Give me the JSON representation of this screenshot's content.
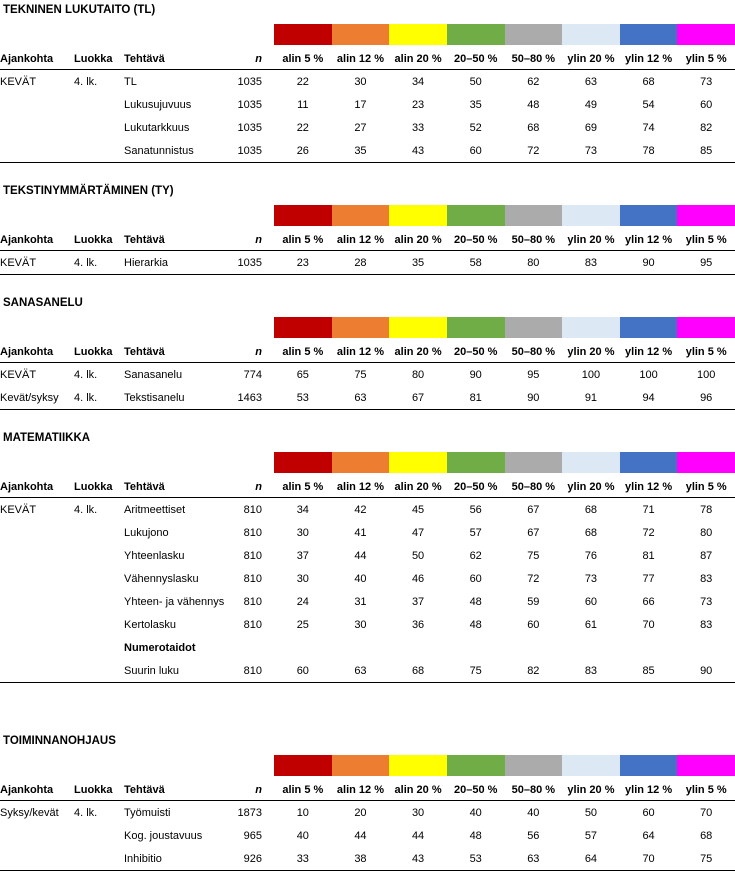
{
  "table_columns": {
    "ajankohta": "Ajankohta",
    "luokka": "Luokka",
    "tehtava": "Tehtävä",
    "n": "n",
    "bands": [
      "alin 5 %",
      "alin 12 %",
      "alin 20 %",
      "20–50 %",
      "50–80 %",
      "ylin 20 %",
      "ylin 12 %",
      "ylin 5 %"
    ]
  },
  "band_colors": [
    "#C00000",
    "#ED7D31",
    "#FFFF00",
    "#70AD47",
    "#ABABAB",
    "#DCE9F5",
    "#4472C4",
    "#FF00FF"
  ],
  "sections": [
    {
      "title": "TEKNINEN LUKUTAITO (TL)",
      "rows": [
        {
          "ajankohta": "KEVÄT",
          "luokka": "4. lk.",
          "tehtava": "TL",
          "n": "1035",
          "values": [
            "22",
            "30",
            "34",
            "50",
            "62",
            "63",
            "68",
            "73"
          ]
        },
        {
          "ajankohta": "",
          "luokka": "",
          "tehtava": "Lukusujuvuus",
          "n": "1035",
          "values": [
            "11",
            "17",
            "23",
            "35",
            "48",
            "49",
            "54",
            "60"
          ]
        },
        {
          "ajankohta": "",
          "luokka": "",
          "tehtava": "Lukutarkkuus",
          "n": "1035",
          "values": [
            "22",
            "27",
            "33",
            "52",
            "68",
            "69",
            "74",
            "82"
          ]
        },
        {
          "ajankohta": "",
          "luokka": "",
          "tehtava": "Sanatunnistus",
          "n": "1035",
          "values": [
            "26",
            "35",
            "43",
            "60",
            "72",
            "73",
            "78",
            "85"
          ]
        }
      ]
    },
    {
      "title": "TEKSTINYMMÄRTÄMINEN (TY)",
      "rows": [
        {
          "ajankohta": "KEVÄT",
          "luokka": "4. lk.",
          "tehtava": "Hierarkia",
          "n": "1035",
          "values": [
            "23",
            "28",
            "35",
            "58",
            "80",
            "83",
            "90",
            "95"
          ]
        }
      ]
    },
    {
      "title": "SANASANELU",
      "rows": [
        {
          "ajankohta": "KEVÄT",
          "luokka": "4. lk.",
          "tehtava": "Sanasanelu",
          "n": "774",
          "values": [
            "65",
            "75",
            "80",
            "90",
            "95",
            "100",
            "100",
            "100"
          ]
        },
        {
          "ajankohta": "Kevät/syksy",
          "luokka": "4. lk.",
          "tehtava": "Tekstisanelu",
          "n": "1463",
          "values": [
            "53",
            "63",
            "67",
            "81",
            "90",
            "91",
            "94",
            "96"
          ]
        }
      ]
    },
    {
      "title": "MATEMATIIKKA",
      "rows": [
        {
          "ajankohta": "KEVÄT",
          "luokka": "4. lk.",
          "tehtava": "Aritmeettiset",
          "n": "810",
          "values": [
            "34",
            "42",
            "45",
            "56",
            "67",
            "68",
            "71",
            "78"
          ]
        },
        {
          "ajankohta": "",
          "luokka": "",
          "tehtava": "Lukujono",
          "n": "810",
          "values": [
            "30",
            "41",
            "47",
            "57",
            "67",
            "68",
            "72",
            "80"
          ]
        },
        {
          "ajankohta": "",
          "luokka": "",
          "tehtava": "Yhteenlasku",
          "n": "810",
          "values": [
            "37",
            "44",
            "50",
            "62",
            "75",
            "76",
            "81",
            "87"
          ]
        },
        {
          "ajankohta": "",
          "luokka": "",
          "tehtava": "Vähennyslasku",
          "n": "810",
          "values": [
            "30",
            "40",
            "46",
            "60",
            "72",
            "73",
            "77",
            "83"
          ]
        },
        {
          "ajankohta": "",
          "luokka": "",
          "tehtava": "Yhteen- ja vähennys",
          "n": "810",
          "values": [
            "24",
            "31",
            "37",
            "48",
            "59",
            "60",
            "66",
            "73"
          ]
        },
        {
          "ajankohta": "",
          "luokka": "",
          "tehtava": "Kertolasku",
          "n": "810",
          "values": [
            "25",
            "30",
            "36",
            "48",
            "60",
            "61",
            "70",
            "83"
          ]
        },
        {
          "ajankohta": "",
          "luokka": "",
          "tehtava": "Numerotaidot",
          "bold": true,
          "n": "",
          "values": []
        },
        {
          "ajankohta": "",
          "luokka": "",
          "tehtava": "Suurin luku",
          "n": "810",
          "values": [
            "60",
            "63",
            "68",
            "75",
            "82",
            "83",
            "85",
            "90"
          ]
        }
      ]
    },
    {
      "title": "TOIMINNANOHJAUS",
      "rows": [
        {
          "ajankohta": "Syksy/kevät",
          "luokka": "4. lk.",
          "tehtava": "Työmuisti",
          "n": "1873",
          "values": [
            "10",
            "20",
            "30",
            "40",
            "40",
            "50",
            "60",
            "70"
          ]
        },
        {
          "ajankohta": "",
          "luokka": "",
          "tehtava": "Kog. joustavuus",
          "n": "965",
          "values": [
            "40",
            "44",
            "44",
            "48",
            "56",
            "57",
            "64",
            "68"
          ]
        },
        {
          "ajankohta": "",
          "luokka": "",
          "tehtava": "Inhibitio",
          "n": "926",
          "values": [
            "33",
            "38",
            "43",
            "53",
            "63",
            "64",
            "70",
            "75"
          ]
        }
      ]
    }
  ]
}
